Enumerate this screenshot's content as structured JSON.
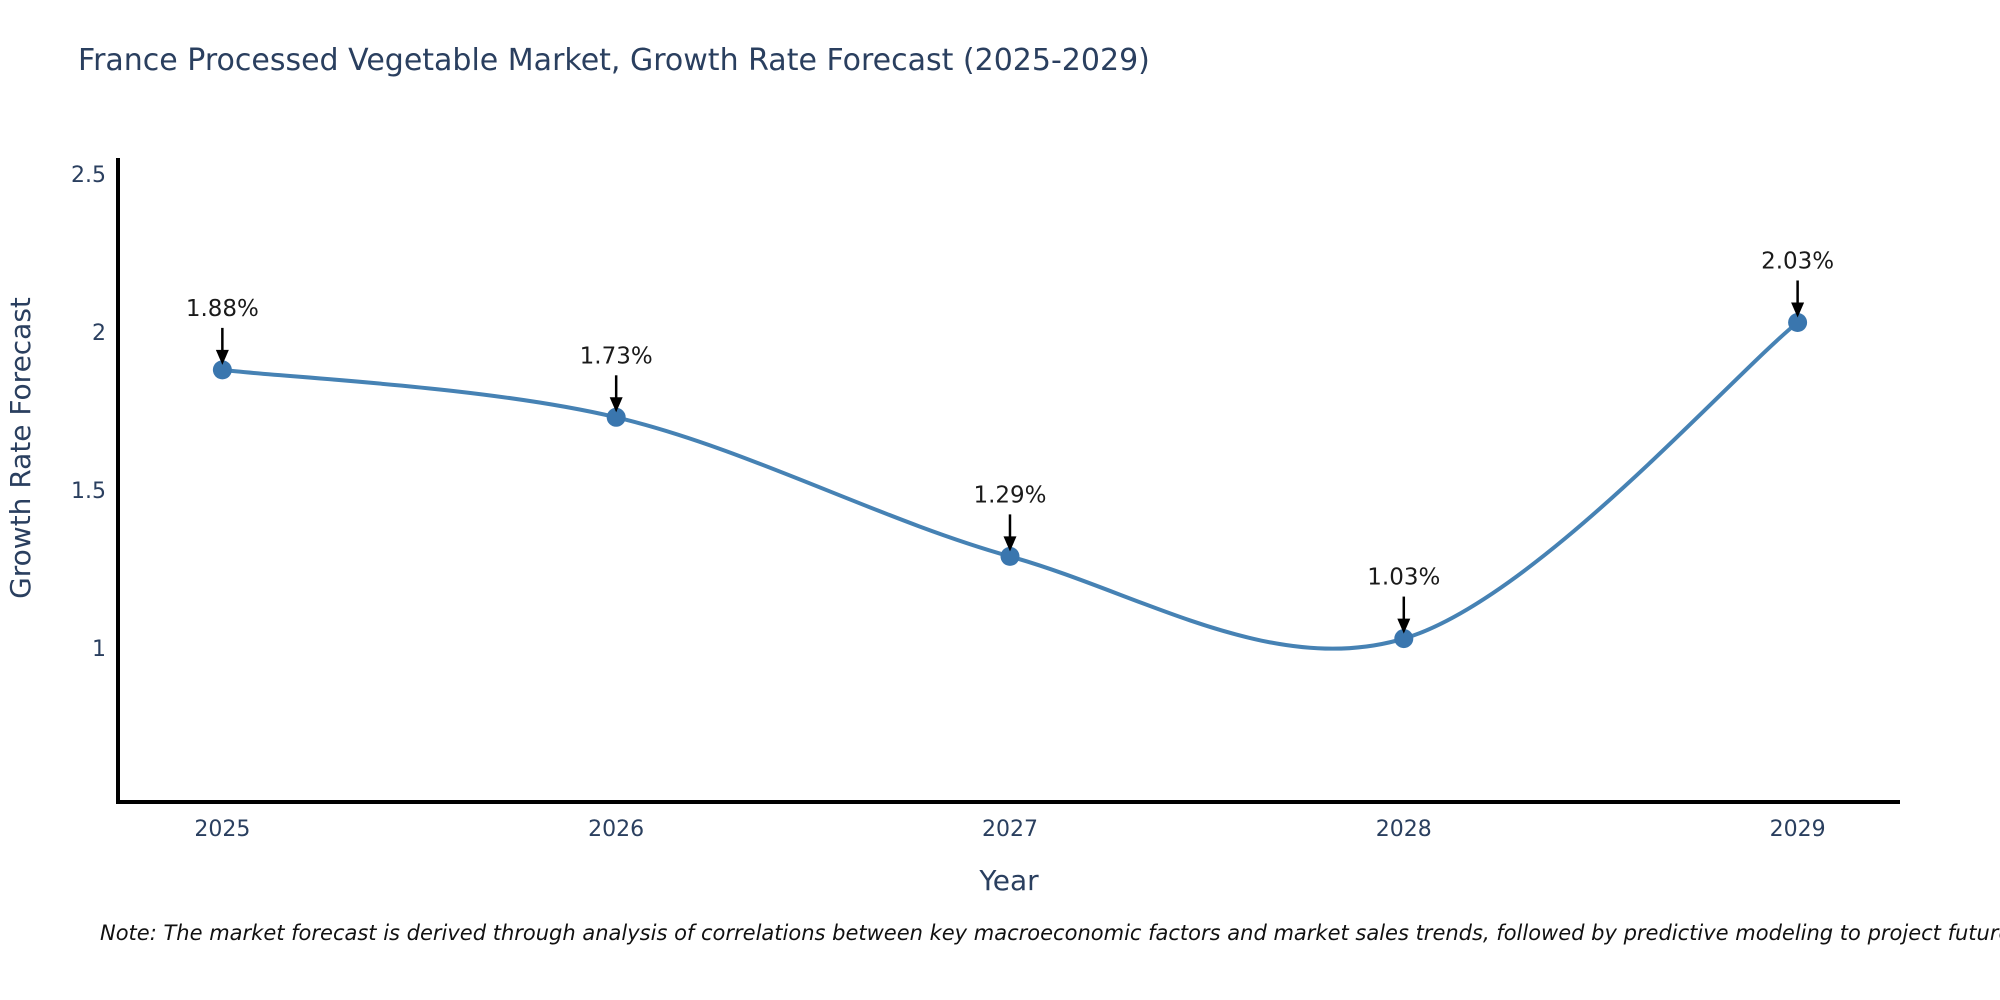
{
  "page": {
    "note": "Note: The market forecast is derived through analysis of correlations between key macroeconomic factors and market sales trends, followed by predictive modeling to project future sales"
  },
  "chart_data": {
    "type": "line",
    "title": "France Processed Vegetable Market, Growth Rate Forecast (2025-2029)",
    "xlabel": "Year",
    "ylabel": "Growth Rate Forecast",
    "x": [
      2025,
      2026,
      2027,
      2028,
      2029
    ],
    "xtick_labels": [
      "2025",
      "2026",
      "2027",
      "2028",
      "2029"
    ],
    "series": [
      {
        "name": "Growth Rate Forecast",
        "values": [
          1.88,
          1.73,
          1.29,
          1.03,
          2.03
        ],
        "labels": [
          "1.88%",
          "1.73%",
          "1.29%",
          "1.03%",
          "2.03%"
        ]
      }
    ],
    "line_shape": "spline",
    "yticks": [
      1,
      1.5,
      2,
      2.5
    ],
    "ytick_labels": [
      "1",
      "1.5",
      "2",
      "2.5"
    ],
    "ylim": [
      0.513,
      2.544
    ],
    "xlim": [
      2024.735,
      2029.26
    ],
    "grid": false,
    "legend": "none",
    "annotation_style": "value label with black arrow pointing down at marker",
    "colors": {
      "line": "#4682b4",
      "marker": "#3a76ae",
      "axis_line": "#000000",
      "axis_text": "#2a3f5f",
      "title_text": "#2a3f5f",
      "annotation_text": "#1a1a1a",
      "note_text": "#111111",
      "background": "#ffffff"
    }
  }
}
